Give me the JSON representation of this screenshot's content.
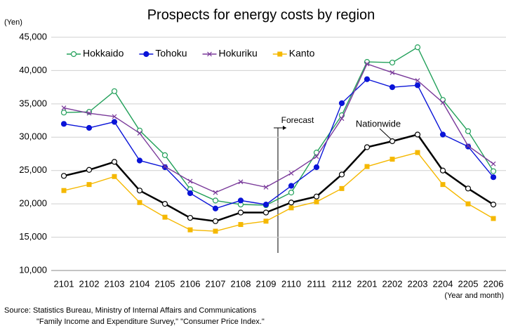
{
  "chart_data": {
    "type": "line",
    "title": "Prospects for energy costs by region",
    "y_unit": "(Yen)",
    "x_label": "(Year and month)",
    "annotation": "Forecast",
    "source": [
      "Source: Statistics Bureau, Ministry of Internal Affairs and Communications",
      "\"Family Income and Expenditure Survey,\" \"Consumer Price Index.\""
    ],
    "categories": [
      "2101",
      "2102",
      "2103",
      "2104",
      "2105",
      "2106",
      "2107",
      "2108",
      "2109",
      "2110",
      "2111",
      "2112",
      "2201",
      "2202",
      "2203",
      "2204",
      "2205",
      "2206"
    ],
    "ylim": [
      10000,
      45000
    ],
    "yticks": [
      {
        "value": 10000,
        "label": "10,000"
      },
      {
        "value": 15000,
        "label": "15,000"
      },
      {
        "value": 20000,
        "label": "20,000"
      },
      {
        "value": 25000,
        "label": "25,000"
      },
      {
        "value": 30000,
        "label": "30,000"
      },
      {
        "value": 35000,
        "label": "35,000"
      },
      {
        "value": 40000,
        "label": "40,000"
      },
      {
        "value": 45000,
        "label": "45,000"
      }
    ],
    "grid": true,
    "legend": "top-left",
    "series": [
      {
        "name": "Hokkaido",
        "color": "#22a05a",
        "marker": "open-circle",
        "values": [
          33700,
          33800,
          36900,
          31000,
          27300,
          22200,
          20500,
          19900,
          19800,
          21700,
          27700,
          33300,
          41300,
          41200,
          43500,
          35600,
          30900,
          24900
        ]
      },
      {
        "name": "Tohoku",
        "color": "#0a14d8",
        "marker": "circle",
        "values": [
          32000,
          31400,
          32300,
          26500,
          25500,
          21600,
          19300,
          20500,
          19900,
          22700,
          25500,
          35100,
          38700,
          37500,
          37800,
          30400,
          28600,
          24000
        ]
      },
      {
        "name": "Hokuriku",
        "color": "#7a3a9a",
        "marker": "x",
        "values": [
          34400,
          33600,
          33100,
          30600,
          25600,
          23400,
          21700,
          23300,
          22500,
          24600,
          27100,
          32800,
          41000,
          39700,
          38500,
          35200,
          28700,
          26000
        ]
      },
      {
        "name": "Kanto",
        "color": "#f5b800",
        "marker": "square",
        "values": [
          22000,
          22900,
          24100,
          20200,
          18000,
          16100,
          15900,
          16900,
          17400,
          19400,
          20300,
          22300,
          25600,
          26700,
          27700,
          22900,
          20000,
          17800
        ]
      },
      {
        "name": "Nationwide",
        "color": "#000000",
        "marker": "open-circle",
        "in_legend": false,
        "width": 2.5,
        "values": [
          24200,
          25100,
          26300,
          22000,
          20000,
          17900,
          17400,
          18700,
          18700,
          20200,
          21100,
          24400,
          28500,
          29400,
          30400,
          25000,
          22300,
          19900
        ]
      }
    ]
  }
}
